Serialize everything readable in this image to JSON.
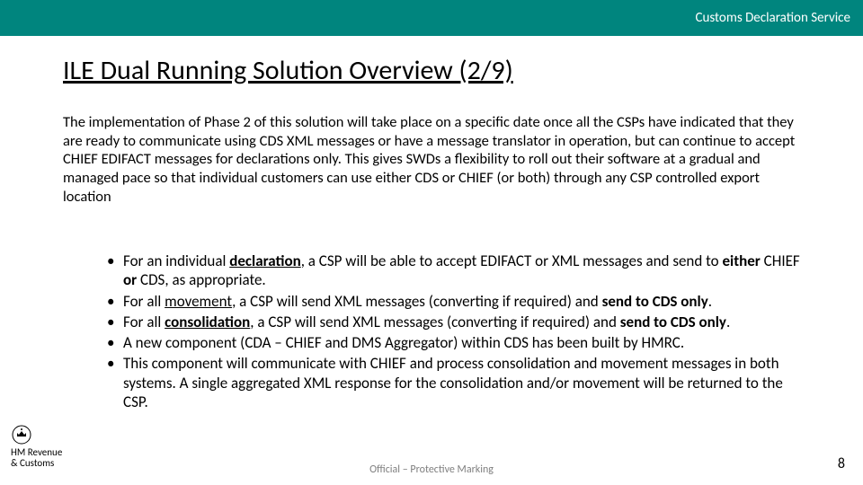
{
  "colors": {
    "header_bg": "#00857e",
    "header_fg": "#ffffff",
    "heading": "#000000",
    "body": "#000000",
    "footer": "#7f7f7f"
  },
  "header": {
    "title": "Customs Declaration Service"
  },
  "heading": "ILE Dual Running Solution Overview (2/9)",
  "intro": {
    "text": "The implementation of Phase 2 of this solution will take place on a specific date once all the CSPs have indicated that they are ready to communicate using CDS XML messages or have a message translator in operation, but can continue to accept CHIEF EDIFACT messages for declarations only. This gives SWDs a flexibility to roll out their software at a gradual and managed pace so that individual customers can use either CDS or CHIEF (or both) through any CSP controlled export location"
  },
  "bullets": [
    {
      "parts": [
        {
          "t": "For an individual "
        },
        {
          "t": "declaration",
          "b": true,
          "u": true
        },
        {
          "t": ", a CSP will be able to accept EDIFACT or XML messages and send to "
        },
        {
          "t": "either",
          "b": true
        },
        {
          "t": " CHIEF "
        },
        {
          "t": "or",
          "b": true
        },
        {
          "t": " CDS, as appropriate."
        }
      ]
    },
    {
      "parts": [
        {
          "t": "For all "
        },
        {
          "t": "movement",
          "u": true
        },
        {
          "t": ", a CSP will send XML messages (converting if required) and "
        },
        {
          "t": "send to CDS only",
          "b": true
        },
        {
          "t": "."
        }
      ]
    },
    {
      "parts": [
        {
          "t": "For all "
        },
        {
          "t": "consolidation",
          "b": true,
          "u": true
        },
        {
          "t": ", a CSP will send XML messages (converting if required) and "
        },
        {
          "t": "send to CDS only",
          "b": true
        },
        {
          "t": "."
        }
      ]
    },
    {
      "parts": [
        {
          "t": "A new component (CDA – CHIEF and DMS Aggregator) within CDS has been built by HMRC."
        }
      ]
    },
    {
      "parts": [
        {
          "t": "This component will communicate with CHIEF and process consolidation and movement messages in both systems. A single aggregated XML response for the consolidation and/or movement will be returned to the CSP."
        }
      ]
    }
  ],
  "footer": {
    "dept_line1": "HM Revenue",
    "dept_line2": "& Customs",
    "marking": "Official – Protective Marking",
    "page": "8"
  }
}
